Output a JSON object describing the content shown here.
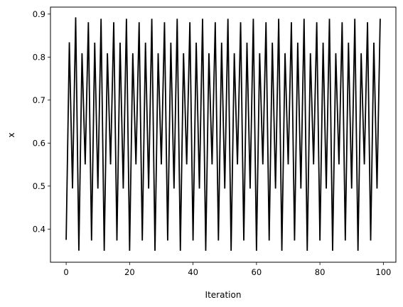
{
  "chart_data": {
    "type": "line",
    "title": "",
    "xlabel": "Iteration",
    "ylabel": "x",
    "xlim": [
      -4.95,
      103.95
    ],
    "ylim": [
      0.3229,
      0.9162
    ],
    "xticks": [
      0,
      20,
      40,
      60,
      80,
      100
    ],
    "yticks": [
      0.4,
      0.5,
      0.6,
      0.7,
      0.8,
      0.9
    ],
    "grid": false,
    "legend": "none",
    "line_color": "#000000",
    "series": [
      {
        "x": [
          0,
          1,
          2,
          3,
          4,
          5,
          6,
          7,
          8,
          9,
          10,
          11,
          12,
          13,
          14,
          15,
          16,
          17,
          18,
          19,
          20,
          21,
          22,
          23,
          24,
          25,
          26,
          27,
          28,
          29,
          30,
          31,
          32,
          33,
          34,
          35,
          36,
          37,
          38,
          39,
          40,
          41,
          42,
          43,
          44,
          45,
          46,
          47,
          48,
          49,
          50,
          51,
          52,
          53,
          54,
          55,
          56,
          57,
          58,
          59,
          60,
          61,
          62,
          63,
          64,
          65,
          66,
          67,
          68,
          69,
          70,
          71,
          72,
          73,
          74,
          75,
          76,
          77,
          78,
          79,
          80,
          81,
          82,
          83,
          84,
          85,
          86,
          87,
          88,
          89,
          90,
          91,
          92,
          93,
          94,
          95,
          96,
          97,
          98,
          99
        ],
        "values": [
          0.375,
          0.8344,
          0.4945,
          0.8924,
          0.3497,
          0.8089,
          0.5503,
          0.8811,
          0.3734,
          0.8336,
          0.4942,
          0.8891,
          0.3495,
          0.8089,
          0.5503,
          0.8811,
          0.3734,
          0.8336,
          0.4942,
          0.8891,
          0.3495,
          0.8089,
          0.5503,
          0.8811,
          0.3734,
          0.8336,
          0.4942,
          0.8891,
          0.3495,
          0.8089,
          0.5503,
          0.8811,
          0.3734,
          0.8336,
          0.4942,
          0.8891,
          0.3495,
          0.8089,
          0.5503,
          0.8811,
          0.3734,
          0.8336,
          0.4942,
          0.8891,
          0.3495,
          0.8089,
          0.5503,
          0.8811,
          0.3734,
          0.8336,
          0.4942,
          0.8891,
          0.3495,
          0.8089,
          0.5503,
          0.8811,
          0.3734,
          0.8336,
          0.4942,
          0.8891,
          0.3495,
          0.8089,
          0.5503,
          0.8811,
          0.3734,
          0.8336,
          0.4942,
          0.8891,
          0.3495,
          0.8089,
          0.5503,
          0.8811,
          0.3734,
          0.8336,
          0.4942,
          0.8891,
          0.3495,
          0.8089,
          0.5503,
          0.8811,
          0.3734,
          0.8336,
          0.4942,
          0.8891,
          0.3495,
          0.8089,
          0.5503,
          0.8811,
          0.3734,
          0.8336,
          0.4942,
          0.8891,
          0.3495,
          0.8089,
          0.5503,
          0.8811,
          0.3734,
          0.8336,
          0.4942,
          0.8891
        ]
      }
    ]
  }
}
